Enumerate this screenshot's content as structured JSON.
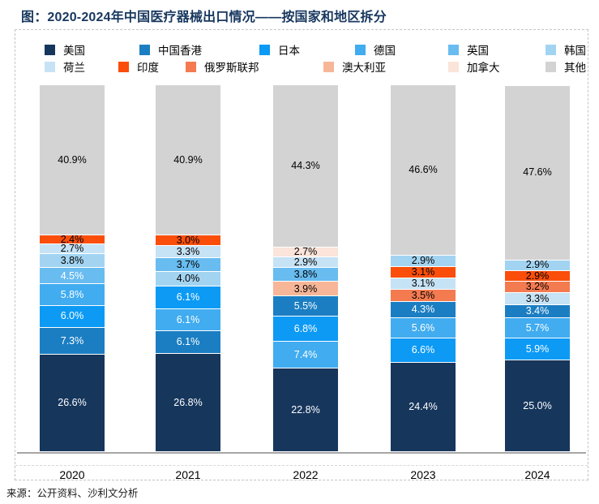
{
  "title": "图：2020-2024年中国医疗器械出口情况——按国家和地区拆分",
  "source": "来源：公开资料、沙利文分析",
  "colors": {
    "美国": "#16365C",
    "中国香港": "#1B7EC2",
    "日本": "#0C9AF5",
    "德国": "#41ACF0",
    "英国": "#68BCF0",
    "韩国": "#A2D4F2",
    "荷兰": "#C6E2F5",
    "印度": "#FA4E0A",
    "俄罗斯联邦": "#F47A50",
    "澳大利亚": "#F7B698",
    "加拿大": "#FBE4DA",
    "其他": "#D3D3D3",
    "title_text": "#17375E",
    "axis_line": "#A6A6A6"
  },
  "legend": {
    "row1": [
      {
        "label": "美国",
        "color": "#16365C"
      },
      {
        "label": "中国香港",
        "color": "#1B7EC2"
      },
      {
        "label": "日本",
        "color": "#0C9AF5"
      },
      {
        "label": "德国",
        "color": "#41ACF0"
      },
      {
        "label": "英国",
        "color": "#68BCF0"
      },
      {
        "label": "韩国",
        "color": "#A2D4F2"
      }
    ],
    "row2": [
      {
        "label": "荷兰",
        "color": "#C6E2F5"
      },
      {
        "label": "印度",
        "color": "#FA4E0A"
      },
      {
        "label": "俄罗斯联邦",
        "color": "#F47A50"
      },
      {
        "label": "澳大利亚",
        "color": "#F7B698"
      },
      {
        "label": "加拿大",
        "color": "#FBE4DA"
      },
      {
        "label": "其他",
        "color": "#D3D3D3"
      }
    ]
  },
  "chart_data": {
    "type": "bar",
    "stacked": true,
    "unit": "%",
    "ylim": [
      0,
      100
    ],
    "grid": false,
    "legend_position": "top",
    "stack_order": "bottom-to-top",
    "categories": [
      "2020",
      "2021",
      "2022",
      "2023",
      "2024"
    ],
    "bars": [
      {
        "year": "2020",
        "segments": [
          {
            "name": "美国",
            "value": 26.6,
            "color": "#16365C",
            "label_white": true
          },
          {
            "name": "中国香港",
            "value": 7.3,
            "color": "#1B7EC2",
            "label_white": true
          },
          {
            "name": "日本",
            "value": 6.0,
            "color": "#0C9AF5",
            "label_white": true
          },
          {
            "name": "德国",
            "value": 5.8,
            "color": "#41ACF0",
            "label_white": true
          },
          {
            "name": "英国",
            "value": 4.5,
            "color": "#68BCF0",
            "label_white": true
          },
          {
            "name": "韩国",
            "value": 3.8,
            "color": "#A2D4F2",
            "label_white": false
          },
          {
            "name": "荷兰",
            "value": 2.7,
            "color": "#C6E2F5",
            "label_white": false
          },
          {
            "name": "印度",
            "value": 2.4,
            "color": "#FA4E0A",
            "label_white": false
          },
          {
            "name": "其他",
            "value": 40.9,
            "color": "#D3D3D3",
            "label_white": false
          }
        ]
      },
      {
        "year": "2021",
        "segments": [
          {
            "name": "美国",
            "value": 26.8,
            "color": "#16365C",
            "label_white": true
          },
          {
            "name": "中国香港",
            "value": 6.1,
            "color": "#1B7EC2",
            "label_white": true
          },
          {
            "name": "德国",
            "value": 6.1,
            "color": "#41ACF0",
            "label_white": true
          },
          {
            "name": "日本",
            "value": 6.1,
            "color": "#0C9AF5",
            "label_white": true
          },
          {
            "name": "韩国",
            "value": 4.0,
            "color": "#A2D4F2",
            "label_white": false
          },
          {
            "name": "英国",
            "value": 3.7,
            "color": "#68BCF0",
            "label_white": false
          },
          {
            "name": "荷兰",
            "value": 3.3,
            "color": "#C6E2F5",
            "label_white": false
          },
          {
            "name": "印度",
            "value": 3.0,
            "color": "#FA4E0A",
            "label_white": false
          },
          {
            "name": "其他",
            "value": 40.9,
            "color": "#D3D3D3",
            "label_white": false
          }
        ]
      },
      {
        "year": "2022",
        "segments": [
          {
            "name": "美国",
            "value": 22.8,
            "color": "#16365C",
            "label_white": true
          },
          {
            "name": "德国",
            "value": 7.4,
            "color": "#41ACF0",
            "label_white": true
          },
          {
            "name": "日本",
            "value": 6.8,
            "color": "#0C9AF5",
            "label_white": true
          },
          {
            "name": "中国香港",
            "value": 5.5,
            "color": "#1B7EC2",
            "label_white": true
          },
          {
            "name": "澳大利亚",
            "value": 3.9,
            "color": "#F7B698",
            "label_white": false
          },
          {
            "name": "英国",
            "value": 3.8,
            "color": "#68BCF0",
            "label_white": false
          },
          {
            "name": "荷兰",
            "value": 2.9,
            "color": "#C6E2F5",
            "label_white": false
          },
          {
            "name": "加拿大",
            "value": 2.7,
            "color": "#FBE4DA",
            "label_white": false
          },
          {
            "name": "其他",
            "value": 44.3,
            "color": "#D3D3D3",
            "label_white": false
          }
        ]
      },
      {
        "year": "2023",
        "segments": [
          {
            "name": "美国",
            "value": 24.4,
            "color": "#16365C",
            "label_white": true
          },
          {
            "name": "日本",
            "value": 6.6,
            "color": "#0C9AF5",
            "label_white": true
          },
          {
            "name": "德国",
            "value": 5.6,
            "color": "#41ACF0",
            "label_white": true
          },
          {
            "name": "中国香港",
            "value": 4.3,
            "color": "#1B7EC2",
            "label_white": true
          },
          {
            "name": "俄罗斯联邦",
            "value": 3.5,
            "color": "#F47A50",
            "label_white": false
          },
          {
            "name": "荷兰",
            "value": 3.1,
            "color": "#C6E2F5",
            "label_white": false
          },
          {
            "name": "印度",
            "value": 3.1,
            "color": "#FA4E0A",
            "label_white": false
          },
          {
            "name": "韩国",
            "value": 2.9,
            "color": "#A2D4F2",
            "label_white": false
          },
          {
            "name": "其他",
            "value": 46.6,
            "color": "#D3D3D3",
            "label_white": false
          }
        ]
      },
      {
        "year": "2024",
        "segments": [
          {
            "name": "美国",
            "value": 25.0,
            "color": "#16365C",
            "label_white": true
          },
          {
            "name": "日本",
            "value": 5.9,
            "color": "#0C9AF5",
            "label_white": true
          },
          {
            "name": "德国",
            "value": 5.7,
            "color": "#41ACF0",
            "label_white": true
          },
          {
            "name": "中国香港",
            "value": 3.4,
            "color": "#1B7EC2",
            "label_white": true
          },
          {
            "name": "荷兰",
            "value": 3.3,
            "color": "#C6E2F5",
            "label_white": false
          },
          {
            "name": "俄罗斯联邦",
            "value": 3.2,
            "color": "#F47A50",
            "label_white": false
          },
          {
            "name": "印度",
            "value": 2.9,
            "color": "#FA4E0A",
            "label_white": false
          },
          {
            "name": "韩国",
            "value": 2.9,
            "color": "#A2D4F2",
            "label_white": false
          },
          {
            "name": "其他",
            "value": 47.6,
            "color": "#D3D3D3",
            "label_white": false
          }
        ]
      }
    ]
  }
}
